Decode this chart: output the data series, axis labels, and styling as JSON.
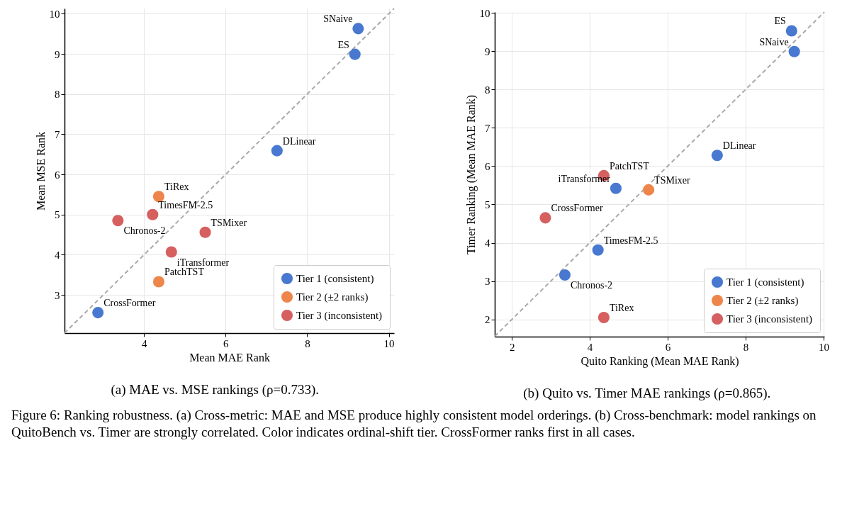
{
  "chart_data": [
    {
      "type": "scatter",
      "xlabel": "Mean MAE Rank",
      "ylabel": "Mean MSE Rank",
      "xlim": [
        2.05,
        10.13
      ],
      "ylim": [
        2.05,
        10.13
      ],
      "xticks": [
        4,
        6,
        8,
        10
      ],
      "yticks": [
        3,
        4,
        5,
        6,
        7,
        8,
        9,
        10
      ],
      "grid": true,
      "legend": "bottom right",
      "series": [
        {
          "type": "line",
          "x": [
            2.05,
            10.13
          ],
          "values": [
            2.05,
            10.13
          ],
          "color": "#aaaaaa",
          "line_style": "dashed"
        },
        {
          "name": "Tier 1 (consistent)",
          "color": "#4878d0",
          "marker": "circle",
          "x": [
            9.25,
            9.17,
            7.26,
            2.87
          ],
          "values": [
            9.63,
            8.99,
            6.59,
            2.56
          ]
        },
        {
          "name": "Tier 2 (±2 ranks)",
          "color": "#ee854a",
          "marker": "circle",
          "x": [
            4.36,
            4.36
          ],
          "values": [
            5.45,
            3.33
          ]
        },
        {
          "name": "Tier 3 (inconsistent)",
          "color": "#d65f5f",
          "marker": "circle",
          "x": [
            4.21,
            3.36,
            5.5,
            4.67
          ],
          "values": [
            5.0,
            4.85,
            4.56,
            4.07
          ]
        }
      ],
      "annotations": [
        {
          "text": "SNaive",
          "x": 9.25,
          "y": 9.63
        },
        {
          "text": "ES",
          "x": 9.17,
          "y": 8.99
        },
        {
          "text": "DLinear",
          "x": 7.26,
          "y": 6.59
        },
        {
          "text": "TiRex",
          "x": 4.36,
          "y": 5.45
        },
        {
          "text": "TimesFM-2.5",
          "x": 4.21,
          "y": 5.0
        },
        {
          "text": "Chronos-2",
          "x": 3.36,
          "y": 4.85
        },
        {
          "text": "TSMixer",
          "x": 5.5,
          "y": 4.56
        },
        {
          "text": "iTransformer",
          "x": 4.67,
          "y": 4.07
        },
        {
          "text": "PatchTST",
          "x": 4.36,
          "y": 3.33
        },
        {
          "text": "CrossFormer",
          "x": 2.87,
          "y": 2.56
        },
        "(a) MAE vs. MSE rankings (ρ=0.733)."
      ]
    },
    {
      "type": "scatter",
      "xlabel": "Quito Ranking (Mean MAE Rank)",
      "ylabel": "Timer Ranking (Mean MAE Rank)",
      "xlim": [
        1.56,
        10.02
      ],
      "ylim": [
        1.55,
        10.02
      ],
      "xticks": [
        2,
        4,
        6,
        8,
        10
      ],
      "yticks": [
        2,
        3,
        4,
        5,
        6,
        7,
        8,
        9,
        10
      ],
      "grid": true,
      "legend": "bottom right",
      "series": [
        {
          "type": "line",
          "x": [
            1.56,
            10.02
          ],
          "values": [
            1.56,
            10.02
          ],
          "color": "#aaaaaa",
          "line_style": "dashed"
        },
        {
          "name": "Tier 1 (consistent)",
          "color": "#4878d0",
          "marker": "circle",
          "x": [
            9.18,
            9.25,
            7.27,
            4.67,
            4.21,
            3.36
          ],
          "values": [
            9.53,
            8.99,
            6.28,
            5.42,
            3.81,
            3.16
          ]
        },
        {
          "name": "Tier 2 (±2 ranks)",
          "color": "#ee854a",
          "marker": "circle",
          "x": [
            5.51
          ],
          "values": [
            5.38
          ]
        },
        {
          "name": "Tier 3 (inconsistent)",
          "color": "#d65f5f",
          "marker": "circle",
          "x": [
            4.36,
            2.86,
            4.36
          ],
          "values": [
            5.75,
            4.65,
            2.05
          ]
        }
      ],
      "annotations": [
        {
          "text": "ES",
          "x": 9.18,
          "y": 9.53
        },
        {
          "text": "SNaive",
          "x": 9.25,
          "y": 8.99
        },
        {
          "text": "DLinear",
          "x": 7.27,
          "y": 6.28
        },
        {
          "text": "PatchTST",
          "x": 4.36,
          "y": 5.75
        },
        {
          "text": "TSMixer",
          "x": 5.51,
          "y": 5.38
        },
        {
          "text": "iTransformer",
          "x": 4.67,
          "y": 5.42
        },
        {
          "text": "CrossFormer",
          "x": 2.86,
          "y": 4.65
        },
        {
          "text": "TimesFM-2.5",
          "x": 4.21,
          "y": 3.81
        },
        {
          "text": "Chronos-2",
          "x": 3.36,
          "y": 3.16
        },
        {
          "text": "TiRex",
          "x": 4.36,
          "y": 2.05
        },
        "(b) Quito vs. Timer MAE rankings (ρ=0.865).",
        "Figure 6: Ranking robustness. (a) Cross-metric: MAE and MSE produce highly consistent model orderings. (b) Cross-benchmark: model rankings on QuitoBench vs. Timer are strongly correlated. Color indicates ordinal-shift tier. CrossFormer ranks first in all cases."
      ]
    }
  ]
}
